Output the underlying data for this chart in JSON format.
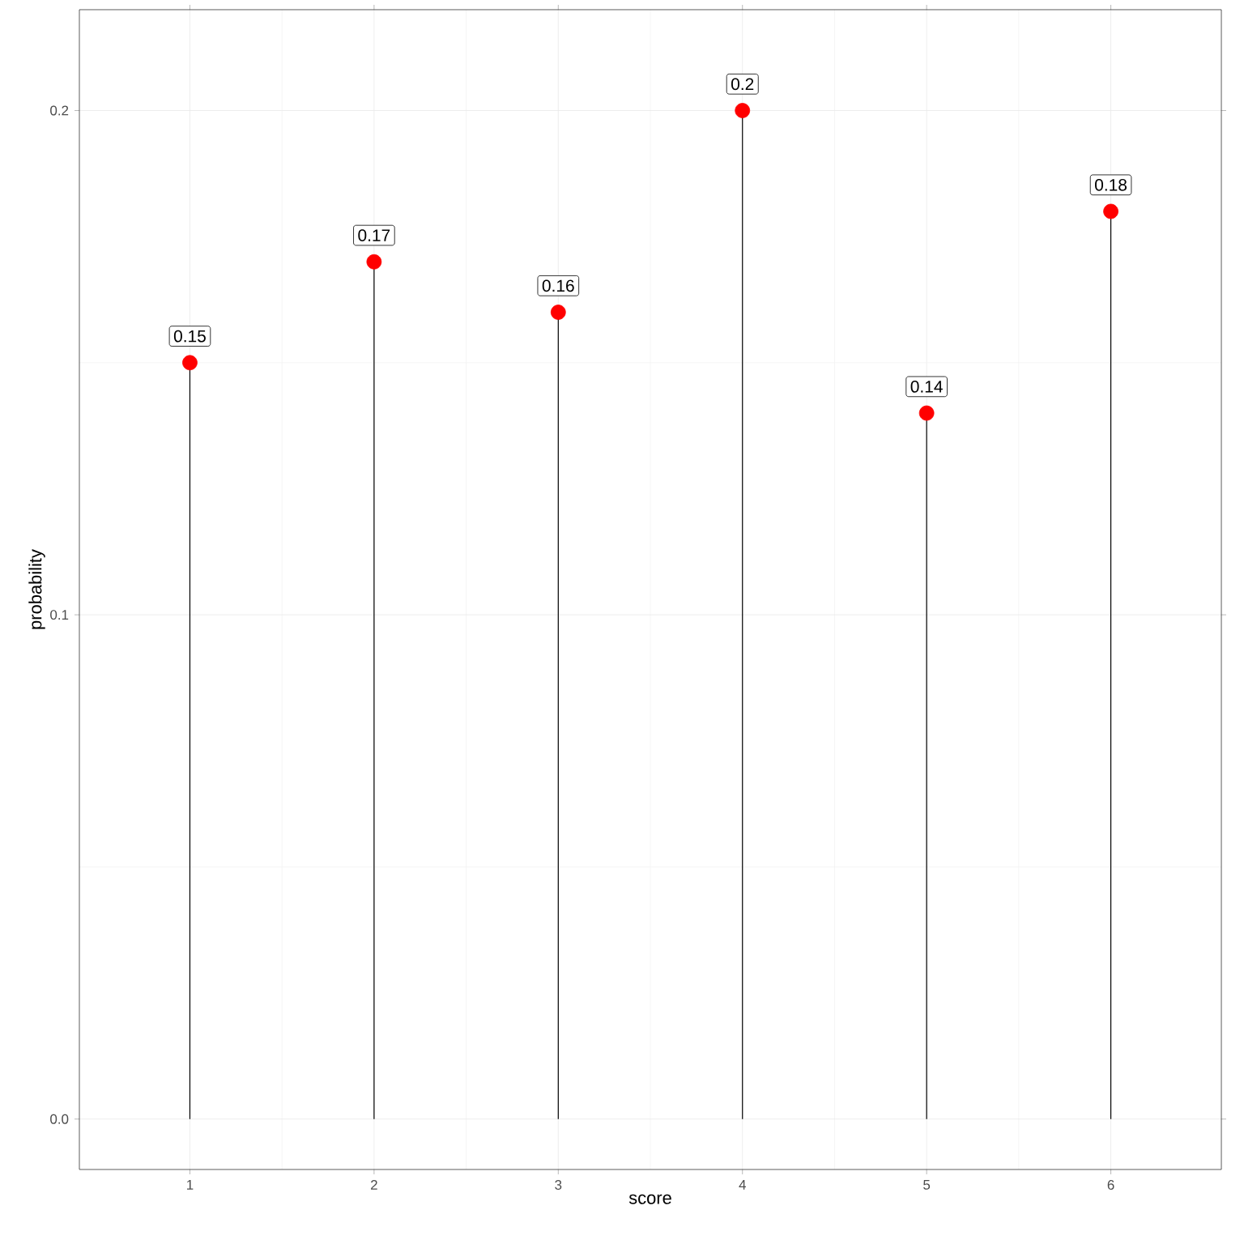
{
  "chart_data": {
    "type": "lollipop",
    "xlabel": "score",
    "ylabel": "probability",
    "x": [
      1,
      2,
      3,
      4,
      5,
      6
    ],
    "values": [
      0.15,
      0.17,
      0.16,
      0.2,
      0.14,
      0.18
    ],
    "color": "#ff0000",
    "xlim": [
      0.4,
      6.6
    ],
    "ylim": [
      -0.01,
      0.22
    ],
    "xticks": [
      1,
      2,
      3,
      4,
      5,
      6
    ],
    "yticks": [
      {
        "value": 0,
        "label": "0.0"
      },
      {
        "value": 0.1,
        "label": "0.1"
      },
      {
        "value": 0.2,
        "label": "0.2"
      }
    ],
    "grid": true,
    "marker": "circle",
    "data_labels": true
  }
}
